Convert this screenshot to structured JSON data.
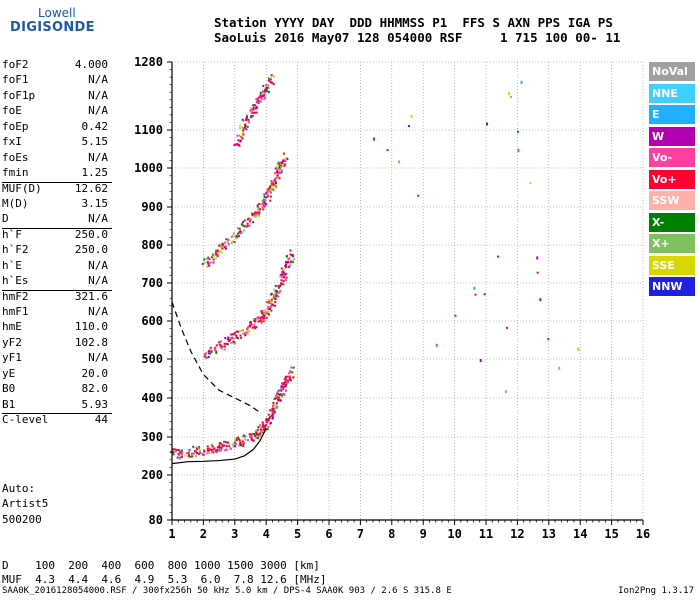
{
  "logo": {
    "line1": "Lowell",
    "line2": "DIGISONDE"
  },
  "header": {
    "line1": "Station YYYY DAY  DDD HHMMSS P1  FFS S AXN PPS IGA PS",
    "line2": "SaoLuis 2016 May07 128 054000 RSF     1 715 100 00- 11"
  },
  "params": [
    {
      "name": "foF2",
      "value": "4.000"
    },
    {
      "name": "foF1",
      "value": "N/A"
    },
    {
      "name": "foF1p",
      "value": "N/A"
    },
    {
      "name": "foE",
      "value": "N/A"
    },
    {
      "name": "foEp",
      "value": "0.42"
    },
    {
      "name": "fxI",
      "value": "5.15"
    },
    {
      "name": "foEs",
      "value": "N/A"
    },
    {
      "name": "fmin",
      "value": "1.25"
    },
    {
      "name": "MUF(D)",
      "value": "12.62"
    },
    {
      "name": "M(D)",
      "value": "3.15"
    },
    {
      "name": "D",
      "value": "N/A"
    },
    {
      "name": "h`F",
      "value": "250.0"
    },
    {
      "name": "h`F2",
      "value": "250.0"
    },
    {
      "name": "h`E",
      "value": "N/A"
    },
    {
      "name": "h`Es",
      "value": "N/A"
    },
    {
      "name": "hmF2",
      "value": "321.6"
    },
    {
      "name": "hmF1",
      "value": "N/A"
    },
    {
      "name": "hmE",
      "value": "110.0"
    },
    {
      "name": "yF2",
      "value": "102.8"
    },
    {
      "name": "yF1",
      "value": "N/A"
    },
    {
      "name": "yE",
      "value": "20.0"
    },
    {
      "name": "B0",
      "value": "82.0"
    },
    {
      "name": "B1",
      "value": "5.93"
    },
    {
      "name": "C-level",
      "value": "44"
    }
  ],
  "auto": {
    "line1": "Auto:",
    "line2": "Artist5",
    "line3": "500200"
  },
  "legend": [
    {
      "label": "NoVal",
      "color": "#a0a0a0"
    },
    {
      "label": "NNE",
      "color": "#40d0ff"
    },
    {
      "label": "E",
      "color": "#20b0ff"
    },
    {
      "label": "W",
      "color": "#b000b0"
    },
    {
      "label": "Vo-",
      "color": "#ff40a0"
    },
    {
      "label": "Vo+",
      "color": "#ff0030"
    },
    {
      "label": "SSW",
      "color": "#ffb0a8"
    },
    {
      "label": "X-",
      "color": "#008000"
    },
    {
      "label": "X+",
      "color": "#80c060"
    },
    {
      "label": "SSE",
      "color": "#d8d800"
    },
    {
      "label": "NNW",
      "color": "#2020e0"
    }
  ],
  "muf_table": {
    "row1": "D    100  200  400  600  800 1000 1500 3000 [km]",
    "row2": "MUF  4.3  4.4  4.6  4.9  5.3  6.0  7.8 12.6 [MHz]"
  },
  "footer": "SAA0K_2016128054000.RSF / 300fx256h 50 kHz 5.0 km / DPS-4 SAA0K 903 / 2.6 S 315.8 E",
  "version": "Ion2Png 1.3.17",
  "chart_data": {
    "type": "scatter",
    "x_ticks": [
      1,
      2,
      3,
      4,
      5,
      6,
      7,
      8,
      9,
      10,
      11,
      12,
      13,
      14,
      15,
      16
    ],
    "y_ticks": [
      80,
      200,
      300,
      400,
      500,
      600,
      700,
      800,
      900,
      1000,
      1100,
      1280
    ],
    "xlim": [
      1,
      16
    ],
    "ylim": [
      80,
      1280
    ],
    "grid": true,
    "profile_curve": {
      "x": [
        1.0,
        1.5,
        2.0,
        2.5,
        3.0,
        3.3,
        3.6,
        3.8,
        4.0
      ],
      "y": [
        230,
        235,
        236,
        238,
        242,
        250,
        268,
        290,
        322
      ]
    },
    "muf_curve": {
      "x": [
        1.0,
        1.3,
        1.6,
        2.0,
        2.5,
        3.0,
        3.5,
        3.85
      ],
      "y": [
        650,
        580,
        520,
        460,
        420,
        400,
        380,
        360
      ]
    },
    "traces": [
      {
        "name": "F trace 1",
        "x": [
          1.0,
          1.5,
          2.0,
          2.5,
          3.0,
          3.5,
          3.8,
          4.0,
          4.2,
          4.4,
          4.6,
          4.8
        ],
        "y": [
          258,
          262,
          268,
          276,
          288,
          300,
          320,
          340,
          370,
          410,
          440,
          470
        ]
      },
      {
        "name": "F trace 2",
        "x": [
          2.0,
          2.5,
          3.0,
          3.5,
          3.8,
          4.0,
          4.2,
          4.4,
          4.6,
          4.8
        ],
        "y": [
          515,
          535,
          560,
          590,
          610,
          630,
          660,
          700,
          740,
          780
        ]
      },
      {
        "name": "F trace 3",
        "x": [
          2.0,
          2.5,
          3.0,
          3.5,
          3.8,
          4.0,
          4.2,
          4.4,
          4.6
        ],
        "y": [
          750,
          790,
          830,
          870,
          900,
          930,
          960,
          1000,
          1040
        ]
      },
      {
        "name": "F trace 4",
        "x": [
          3.0,
          3.3,
          3.6,
          3.9,
          4.2
        ],
        "y": [
          1060,
          1120,
          1160,
          1200,
          1240
        ]
      },
      {
        "name": "scattered",
        "x": [
          7.4,
          8.2,
          8.6,
          9.4,
          10.6,
          10.8,
          11.0,
          11.6,
          11.7,
          12.0,
          12.1,
          12.6,
          12.7,
          13.3,
          13.9
        ],
        "y": [
          1080,
          1020,
          1140,
          540,
          690,
          500,
          1120,
          420,
          1200,
          1050,
          1230,
          770,
          660,
          480,
          530
        ]
      }
    ]
  }
}
